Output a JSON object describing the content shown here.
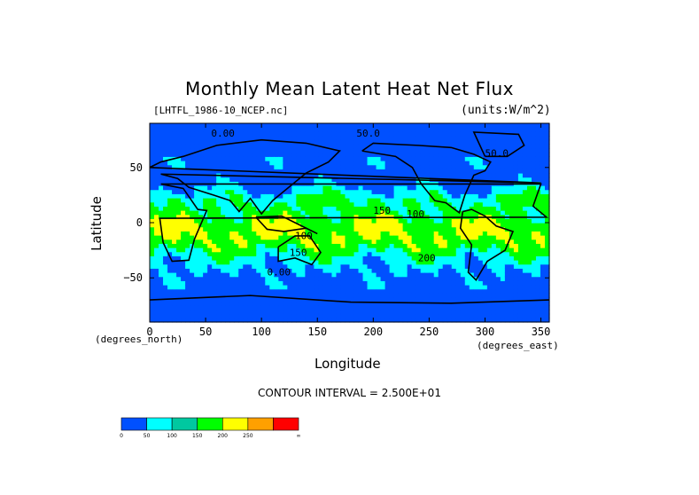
{
  "chart_data": {
    "type": "heatmap",
    "title": "Monthly Mean Latent Heat Net Flux",
    "subtitle_left": "[LHTFL_1986-10_NCEP.nc]",
    "subtitle_right": "(units:W/m^2)",
    "xlabel": "Longitude",
    "ylabel": "Latitude",
    "x_unit_label": "(degrees_east)",
    "y_unit_label": "(degrees_north)",
    "xlim": [
      0,
      357.5
    ],
    "ylim": [
      -90,
      90
    ],
    "x_ticks": [
      0,
      50,
      100,
      150,
      200,
      250,
      300,
      350
    ],
    "y_ticks": [
      -50,
      0,
      50
    ],
    "contour_interval_text": "CONTOUR INTERVAL = 2.500E+01",
    "contour_labels": [
      "0.00",
      "50.0",
      "100",
      "150",
      "200"
    ],
    "colorbar": {
      "colors": [
        "#0050ff",
        "#00ffff",
        "#00c8a0",
        "#00ff00",
        "#ffff00",
        "#ffa000",
        "#ff0000"
      ],
      "tick_labels": [
        "0",
        "50",
        "100",
        "150",
        "200",
        "250",
        "∞"
      ]
    },
    "grid": "off",
    "legend": "colorbar bottom-left"
  }
}
